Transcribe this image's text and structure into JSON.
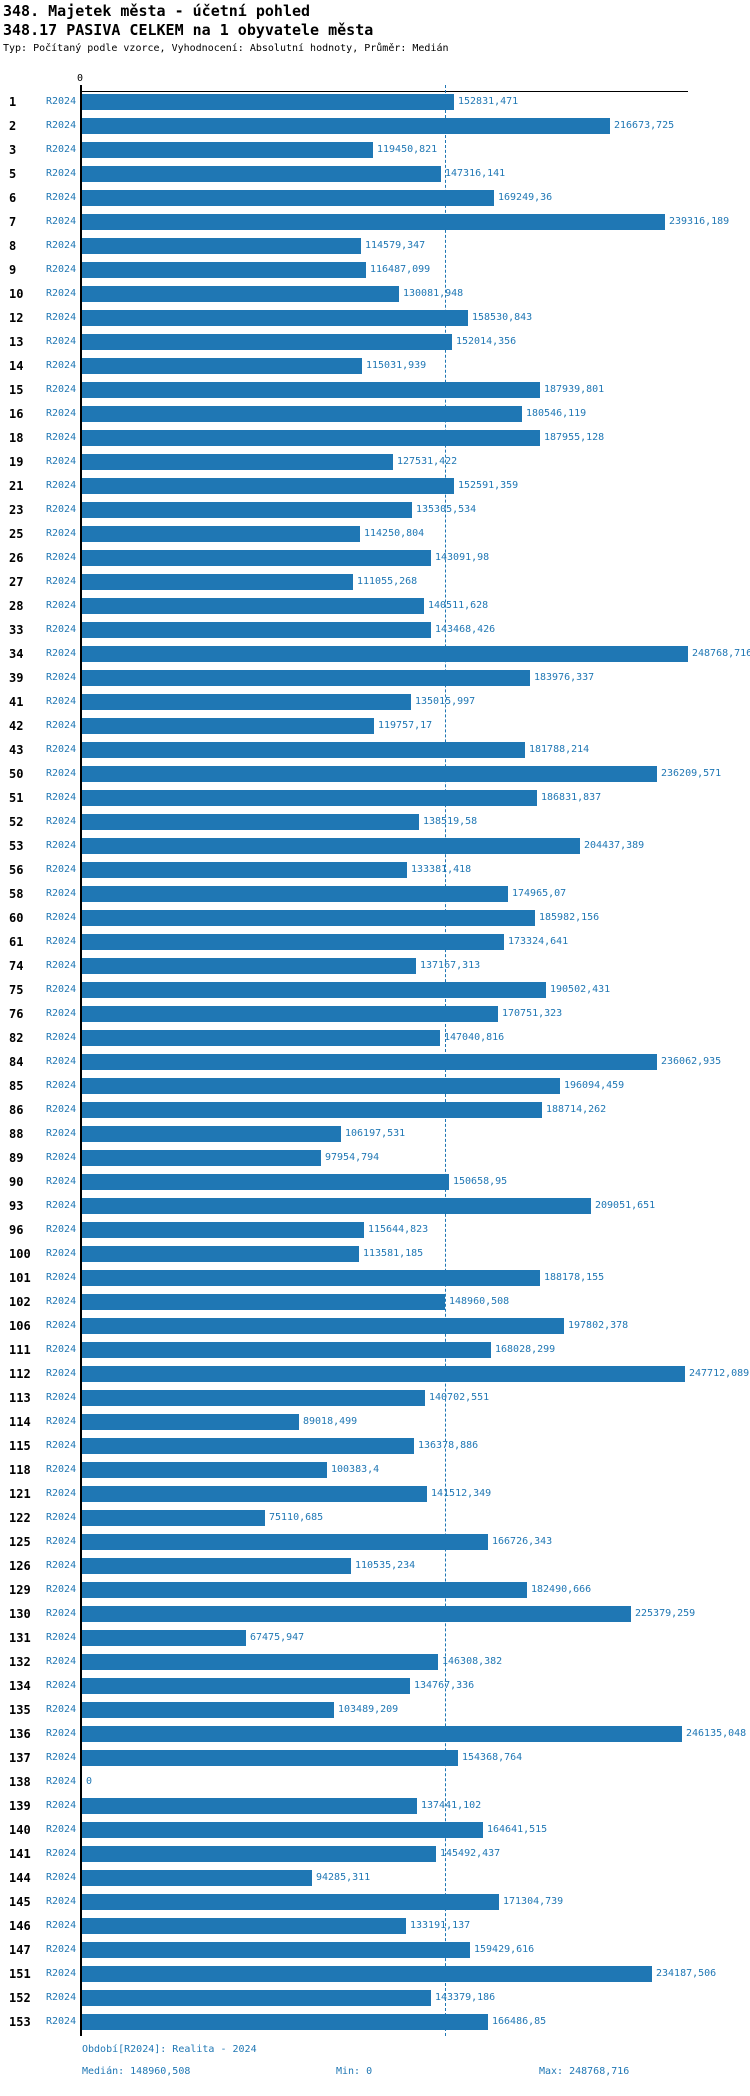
{
  "header": {
    "title1": "348. Majetek města - účetní pohled",
    "title2": "348.17 PASIVA CELKEM na 1 obyvatele města",
    "meta": "Typ: Počítaný podle vzorce, Vyhodnocení: Absolutní hodnoty, Průměr: Medián"
  },
  "colors": {
    "bar": "#1f77b4",
    "text_accent": "#1f77b4",
    "axis": "#000000"
  },
  "chart_data": {
    "type": "bar",
    "orientation": "horizontal",
    "series_label": "R2024",
    "zero_tick_label": "0",
    "xlim": [
      0,
      248768.716
    ],
    "median": 148960.508,
    "grid": false,
    "rows": [
      {
        "id": "1",
        "value": 152831.471,
        "label": "152831,471"
      },
      {
        "id": "2",
        "value": 216673.725,
        "label": "216673,725"
      },
      {
        "id": "3",
        "value": 119450.821,
        "label": "119450,821"
      },
      {
        "id": "5",
        "value": 147316.141,
        "label": "147316,141"
      },
      {
        "id": "6",
        "value": 169249.36,
        "label": "169249,36"
      },
      {
        "id": "7",
        "value": 239316.189,
        "label": "239316,189"
      },
      {
        "id": "8",
        "value": 114579.347,
        "label": "114579,347"
      },
      {
        "id": "9",
        "value": 116487.099,
        "label": "116487,099"
      },
      {
        "id": "10",
        "value": 130081.948,
        "label": "130081,948"
      },
      {
        "id": "12",
        "value": 158530.843,
        "label": "158530,843"
      },
      {
        "id": "13",
        "value": 152014.356,
        "label": "152014,356"
      },
      {
        "id": "14",
        "value": 115031.939,
        "label": "115031,939"
      },
      {
        "id": "15",
        "value": 187939.801,
        "label": "187939,801"
      },
      {
        "id": "16",
        "value": 180546.119,
        "label": "180546,119"
      },
      {
        "id": "18",
        "value": 187955.128,
        "label": "187955,128"
      },
      {
        "id": "19",
        "value": 127531.422,
        "label": "127531,422"
      },
      {
        "id": "21",
        "value": 152591.359,
        "label": "152591,359"
      },
      {
        "id": "23",
        "value": 135305.534,
        "label": "135305,534"
      },
      {
        "id": "25",
        "value": 114250.804,
        "label": "114250,804"
      },
      {
        "id": "26",
        "value": 143091.98,
        "label": "143091,98"
      },
      {
        "id": "27",
        "value": 111055.268,
        "label": "111055,268"
      },
      {
        "id": "28",
        "value": 140511.628,
        "label": "140511,628"
      },
      {
        "id": "33",
        "value": 143468.426,
        "label": "143468,426"
      },
      {
        "id": "34",
        "value": 248768.716,
        "label": "248768,716"
      },
      {
        "id": "39",
        "value": 183976.337,
        "label": "183976,337"
      },
      {
        "id": "41",
        "value": 135015.997,
        "label": "135015,997"
      },
      {
        "id": "42",
        "value": 119757.17,
        "label": "119757,17"
      },
      {
        "id": "43",
        "value": 181788.214,
        "label": "181788,214"
      },
      {
        "id": "50",
        "value": 236209.571,
        "label": "236209,571"
      },
      {
        "id": "51",
        "value": 186831.837,
        "label": "186831,837"
      },
      {
        "id": "52",
        "value": 138519.58,
        "label": "138519,58"
      },
      {
        "id": "53",
        "value": 204437.389,
        "label": "204437,389"
      },
      {
        "id": "56",
        "value": 133381.418,
        "label": "133381,418"
      },
      {
        "id": "58",
        "value": 174965.07,
        "label": "174965,07"
      },
      {
        "id": "60",
        "value": 185982.156,
        "label": "185982,156"
      },
      {
        "id": "61",
        "value": 173324.641,
        "label": "173324,641"
      },
      {
        "id": "74",
        "value": 137167.313,
        "label": "137167,313"
      },
      {
        "id": "75",
        "value": 190502.431,
        "label": "190502,431"
      },
      {
        "id": "76",
        "value": 170751.323,
        "label": "170751,323"
      },
      {
        "id": "82",
        "value": 147040.816,
        "label": "147040,816"
      },
      {
        "id": "84",
        "value": 236062.935,
        "label": "236062,935"
      },
      {
        "id": "85",
        "value": 196094.459,
        "label": "196094,459"
      },
      {
        "id": "86",
        "value": 188714.262,
        "label": "188714,262"
      },
      {
        "id": "88",
        "value": 106197.531,
        "label": "106197,531"
      },
      {
        "id": "89",
        "value": 97954.794,
        "label": "97954,794"
      },
      {
        "id": "90",
        "value": 150658.95,
        "label": "150658,95"
      },
      {
        "id": "93",
        "value": 209051.651,
        "label": "209051,651"
      },
      {
        "id": "96",
        "value": 115644.823,
        "label": "115644,823"
      },
      {
        "id": "100",
        "value": 113581.185,
        "label": "113581,185"
      },
      {
        "id": "101",
        "value": 188178.155,
        "label": "188178,155"
      },
      {
        "id": "102",
        "value": 148960.508,
        "label": "148960,508"
      },
      {
        "id": "106",
        "value": 197802.378,
        "label": "197802,378"
      },
      {
        "id": "111",
        "value": 168028.299,
        "label": "168028,299"
      },
      {
        "id": "112",
        "value": 247712.089,
        "label": "247712,089"
      },
      {
        "id": "113",
        "value": 140702.551,
        "label": "140702,551"
      },
      {
        "id": "114",
        "value": 89018.499,
        "label": "89018,499"
      },
      {
        "id": "115",
        "value": 136378.886,
        "label": "136378,886"
      },
      {
        "id": "118",
        "value": 100383.4,
        "label": "100383,4"
      },
      {
        "id": "121",
        "value": 141512.349,
        "label": "141512,349"
      },
      {
        "id": "122",
        "value": 75110.685,
        "label": "75110,685"
      },
      {
        "id": "125",
        "value": 166726.343,
        "label": "166726,343"
      },
      {
        "id": "126",
        "value": 110535.234,
        "label": "110535,234"
      },
      {
        "id": "129",
        "value": 182490.666,
        "label": "182490,666"
      },
      {
        "id": "130",
        "value": 225379.259,
        "label": "225379,259"
      },
      {
        "id": "131",
        "value": 67475.947,
        "label": "67475,947"
      },
      {
        "id": "132",
        "value": 146308.382,
        "label": "146308,382"
      },
      {
        "id": "134",
        "value": 134767.336,
        "label": "134767,336"
      },
      {
        "id": "135",
        "value": 103489.209,
        "label": "103489,209"
      },
      {
        "id": "136",
        "value": 246135.048,
        "label": "246135,048"
      },
      {
        "id": "137",
        "value": 154368.764,
        "label": "154368,764"
      },
      {
        "id": "138",
        "value": 0,
        "label": "0"
      },
      {
        "id": "139",
        "value": 137441.102,
        "label": "137441,102"
      },
      {
        "id": "140",
        "value": 164641.515,
        "label": "164641,515"
      },
      {
        "id": "141",
        "value": 145492.437,
        "label": "145492,437"
      },
      {
        "id": "144",
        "value": 94285.311,
        "label": "94285,311"
      },
      {
        "id": "145",
        "value": 171304.739,
        "label": "171304,739"
      },
      {
        "id": "146",
        "value": 133191.137,
        "label": "133191,137"
      },
      {
        "id": "147",
        "value": 159429.616,
        "label": "159429,616"
      },
      {
        "id": "151",
        "value": 234187.506,
        "label": "234187,506"
      },
      {
        "id": "152",
        "value": 143379.186,
        "label": "143379,186"
      },
      {
        "id": "153",
        "value": 166486.85,
        "label": "166486,85"
      }
    ]
  },
  "footer": {
    "period": "Období[R2024]: Realita - 2024",
    "median": "Medián: 148960,508",
    "min": "Min: 0",
    "max": "Max: 248768,716"
  }
}
